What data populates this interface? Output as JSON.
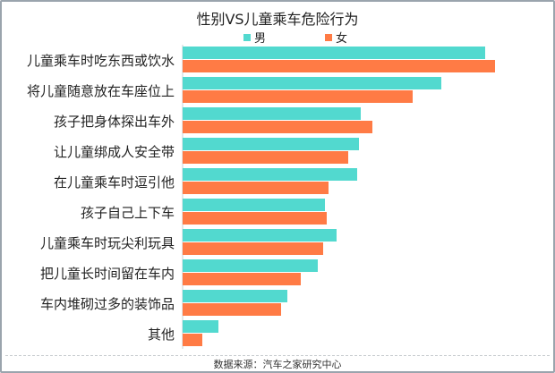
{
  "chart_data": {
    "type": "bar",
    "orientation": "horizontal",
    "title": "性别VS儿童乘车危险行为",
    "xlabel": "",
    "ylabel": "",
    "grid": false,
    "legend_position": "top",
    "categories": [
      "儿童乘车时吃东西或饮水",
      "将儿童随意放在车座位上",
      "孩子把身体探出车外",
      "让儿童绑成人安全带",
      "在儿童乘车时逗引他",
      "孩子自己上下车",
      "儿童乘车时玩尖利玩具",
      "把儿童长时间留在车内",
      "车内堆砌过多的装饰品",
      "其他"
    ],
    "series": [
      {
        "name": "男",
        "color": "#52d9cf",
        "values": [
          338,
          289,
          199,
          197,
          195,
          159,
          172,
          151,
          117,
          40
        ]
      },
      {
        "name": "女",
        "color": "#ff7b45",
        "values": [
          349,
          257,
          212,
          185,
          163,
          161,
          157,
          132,
          110,
          22
        ]
      }
    ],
    "value_note": "relative bar lengths (no axis values shown)",
    "source": "数据来源：汽车之家研究中心"
  }
}
